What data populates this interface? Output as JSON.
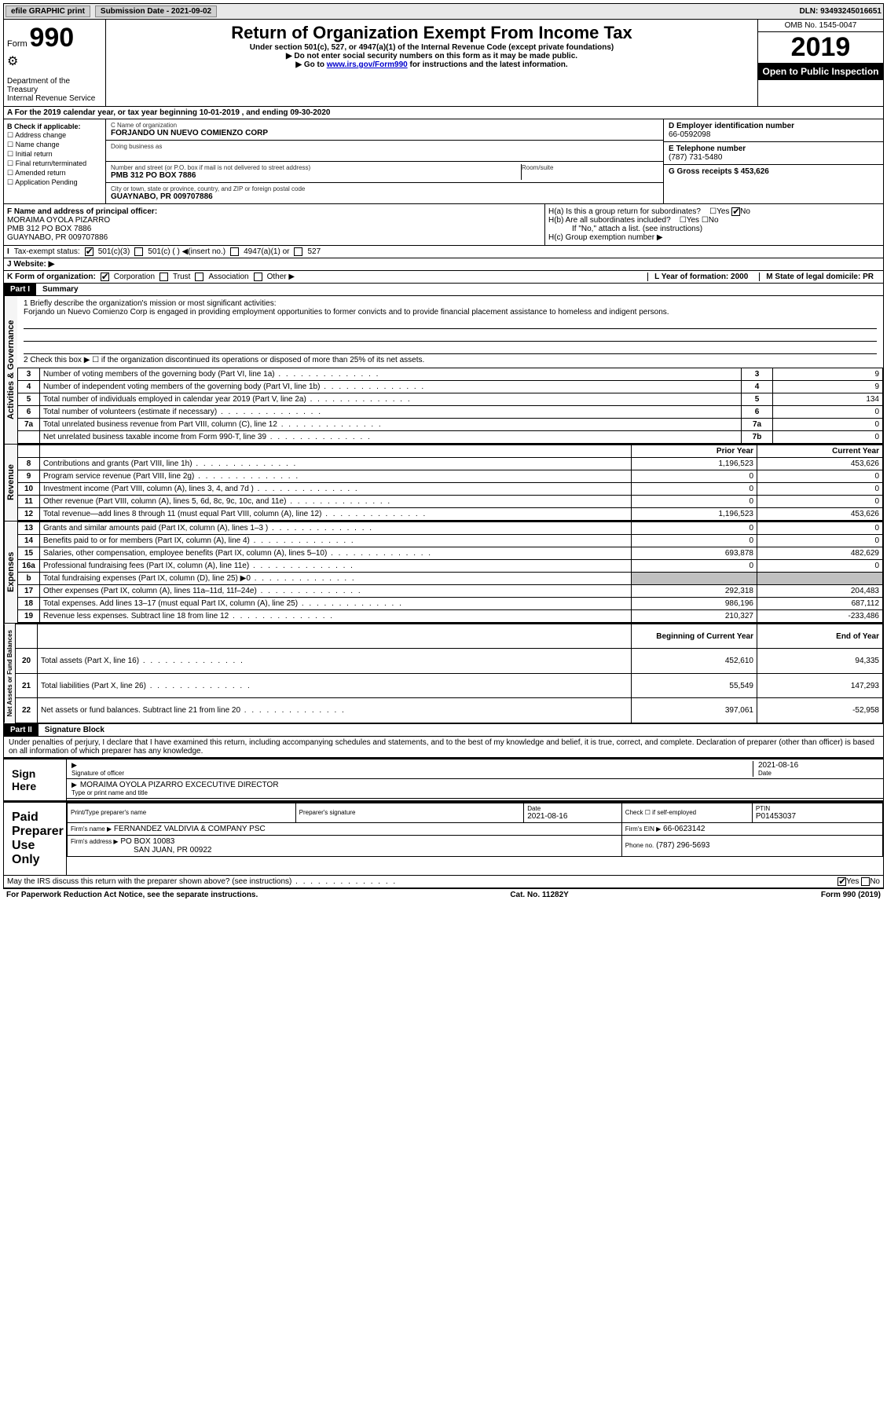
{
  "topbar": {
    "efile": "efile GRAPHIC print",
    "submission_label": "Submission Date - 2021-09-02",
    "dln": "DLN: 93493245016651"
  },
  "header": {
    "form_word": "Form",
    "form_num": "990",
    "dept": "Department of the Treasury",
    "irs": "Internal Revenue Service",
    "title": "Return of Organization Exempt From Income Tax",
    "sub1": "Under section 501(c), 527, or 4947(a)(1) of the Internal Revenue Code (except private foundations)",
    "sub2": "▶ Do not enter social security numbers on this form as it may be made public.",
    "sub3a": "▶ Go to ",
    "sub3link": "www.irs.gov/Form990",
    "sub3b": " for instructions and the latest information.",
    "omb": "OMB No. 1545-0047",
    "year": "2019",
    "open": "Open to Public Inspection"
  },
  "rowA": "A For the 2019 calendar year, or tax year beginning 10-01-2019   , and ending 09-30-2020",
  "colB": {
    "label": "B Check if applicable:",
    "items": [
      "Address change",
      "Name change",
      "Initial return",
      "Final return/terminated",
      "Amended return",
      "Application Pending"
    ]
  },
  "colC": {
    "name_label": "C Name of organization",
    "name": "FORJANDO UN NUEVO COMIENZO CORP",
    "dba_label": "Doing business as",
    "addr_label": "Number and street (or P.O. box if mail is not delivered to street address)",
    "room_label": "Room/suite",
    "addr": "PMB 312 PO BOX 7886",
    "city_label": "City or town, state or province, country, and ZIP or foreign postal code",
    "city": "GUAYNABO, PR  009707886"
  },
  "colD": {
    "ein_label": "D Employer identification number",
    "ein": "66-0592098",
    "phone_label": "E Telephone number",
    "phone": "(787) 731-5480",
    "gross_label": "G Gross receipts $ 453,626"
  },
  "rowF": {
    "label": "F  Name and address of principal officer:",
    "name": "MORAIMA OYOLA PIZARRO",
    "addr1": "PMB 312 PO BOX 7886",
    "addr2": "GUAYNABO, PR  009707886"
  },
  "rowH": {
    "ha": "H(a)  Is this a group return for subordinates?",
    "hb": "H(b)  Are all subordinates included?",
    "hb_note": "If \"No,\" attach a list. (see instructions)",
    "hc": "H(c)  Group exemption number ▶"
  },
  "rowI": {
    "label": "Tax-exempt status:",
    "o1": "501(c)(3)",
    "o2": "501(c) (   ) ◀(insert no.)",
    "o3": "4947(a)(1) or",
    "o4": "527"
  },
  "rowJ": "J   Website: ▶",
  "rowK": {
    "label": "K Form of organization:",
    "opts": [
      "Corporation",
      "Trust",
      "Association",
      "Other ▶"
    ],
    "l": "L Year of formation: 2000",
    "m": "M State of legal domicile: PR"
  },
  "part1": {
    "hdr": "Part I",
    "title": "Summary",
    "q1a": "1   Briefly describe the organization's mission or most significant activities:",
    "q1b": "Forjando un Nuevo Comienzo Corp is engaged in providing employment opportunities to former convicts and to provide financial placement assistance to homeless and indigent persons.",
    "q2": "2   Check this box ▶ ☐  if the organization discontinued its operations or disposed of more than 25% of its net assets.",
    "rows_gov": [
      {
        "n": "3",
        "t": "Number of voting members of the governing body (Part VI, line 1a)",
        "c": "3",
        "v": "9"
      },
      {
        "n": "4",
        "t": "Number of independent voting members of the governing body (Part VI, line 1b)",
        "c": "4",
        "v": "9"
      },
      {
        "n": "5",
        "t": "Total number of individuals employed in calendar year 2019 (Part V, line 2a)",
        "c": "5",
        "v": "134"
      },
      {
        "n": "6",
        "t": "Total number of volunteers (estimate if necessary)",
        "c": "6",
        "v": "0"
      },
      {
        "n": "7a",
        "t": "Total unrelated business revenue from Part VIII, column (C), line 12",
        "c": "7a",
        "v": "0"
      },
      {
        "n": "",
        "t": "Net unrelated business taxable income from Form 990-T, line 39",
        "c": "7b",
        "v": "0"
      }
    ],
    "col_py": "Prior Year",
    "col_cy": "Current Year",
    "rows_rev": [
      {
        "n": "8",
        "t": "Contributions and grants (Part VIII, line 1h)",
        "py": "1,196,523",
        "cy": "453,626"
      },
      {
        "n": "9",
        "t": "Program service revenue (Part VIII, line 2g)",
        "py": "0",
        "cy": "0"
      },
      {
        "n": "10",
        "t": "Investment income (Part VIII, column (A), lines 3, 4, and 7d )",
        "py": "0",
        "cy": "0"
      },
      {
        "n": "11",
        "t": "Other revenue (Part VIII, column (A), lines 5, 6d, 8c, 9c, 10c, and 11e)",
        "py": "0",
        "cy": "0"
      },
      {
        "n": "12",
        "t": "Total revenue—add lines 8 through 11 (must equal Part VIII, column (A), line 12)",
        "py": "1,196,523",
        "cy": "453,626"
      }
    ],
    "rows_exp": [
      {
        "n": "13",
        "t": "Grants and similar amounts paid (Part IX, column (A), lines 1–3 )",
        "py": "0",
        "cy": "0"
      },
      {
        "n": "14",
        "t": "Benefits paid to or for members (Part IX, column (A), line 4)",
        "py": "0",
        "cy": "0"
      },
      {
        "n": "15",
        "t": "Salaries, other compensation, employee benefits (Part IX, column (A), lines 5–10)",
        "py": "693,878",
        "cy": "482,629"
      },
      {
        "n": "16a",
        "t": "Professional fundraising fees (Part IX, column (A), line 11e)",
        "py": "0",
        "cy": "0"
      },
      {
        "n": "b",
        "t": "Total fundraising expenses (Part IX, column (D), line 25) ▶0",
        "py": "",
        "cy": "",
        "gray": true
      },
      {
        "n": "17",
        "t": "Other expenses (Part IX, column (A), lines 11a–11d, 11f–24e)",
        "py": "292,318",
        "cy": "204,483"
      },
      {
        "n": "18",
        "t": "Total expenses. Add lines 13–17 (must equal Part IX, column (A), line 25)",
        "py": "986,196",
        "cy": "687,112"
      },
      {
        "n": "19",
        "t": "Revenue less expenses. Subtract line 18 from line 12",
        "py": "210,327",
        "cy": "-233,486"
      }
    ],
    "col_bcy": "Beginning of Current Year",
    "col_eoy": "End of Year",
    "rows_net": [
      {
        "n": "20",
        "t": "Total assets (Part X, line 16)",
        "py": "452,610",
        "cy": "94,335"
      },
      {
        "n": "21",
        "t": "Total liabilities (Part X, line 26)",
        "py": "55,549",
        "cy": "147,293"
      },
      {
        "n": "22",
        "t": "Net assets or fund balances. Subtract line 21 from line 20",
        "py": "397,061",
        "cy": "-52,958"
      }
    ],
    "side_gov": "Activities & Governance",
    "side_rev": "Revenue",
    "side_exp": "Expenses",
    "side_net": "Net Assets or Fund Balances"
  },
  "part2": {
    "hdr": "Part II",
    "title": "Signature Block",
    "decl": "Under penalties of perjury, I declare that I have examined this return, including accompanying schedules and statements, and to the best of my knowledge and belief, it is true, correct, and complete. Declaration of preparer (other than officer) is based on all information of which preparer has any knowledge.",
    "sign_here": "Sign Here",
    "sig_officer": "Signature of officer",
    "sig_date": "2021-08-16",
    "date_lbl": "Date",
    "name_title": "MORAIMA OYOLA PIZARRO  EXCECUTIVE DIRECTOR",
    "name_title_lbl": "Type or print name and title",
    "paid": "Paid Preparer Use Only",
    "prep_name_lbl": "Print/Type preparer's name",
    "prep_sig_lbl": "Preparer's signature",
    "prep_date_lbl": "Date",
    "prep_date": "2021-08-16",
    "self_emp": "Check ☐ if self-employed",
    "ptin_lbl": "PTIN",
    "ptin": "P01453037",
    "firm_name_lbl": "Firm's name    ▶",
    "firm_name": "FERNANDEZ VALDIVIA & COMPANY PSC",
    "firm_ein_lbl": "Firm's EIN ▶",
    "firm_ein": "66-0623142",
    "firm_addr_lbl": "Firm's address ▶",
    "firm_addr1": "PO BOX 10083",
    "firm_addr2": "SAN JUAN, PR  00922",
    "firm_phone_lbl": "Phone no.",
    "firm_phone": "(787) 296-5693",
    "discuss": "May the IRS discuss this return with the preparer shown above? (see instructions)"
  },
  "footer": {
    "left": "For Paperwork Reduction Act Notice, see the separate instructions.",
    "mid": "Cat. No. 11282Y",
    "right": "Form 990 (2019)"
  }
}
